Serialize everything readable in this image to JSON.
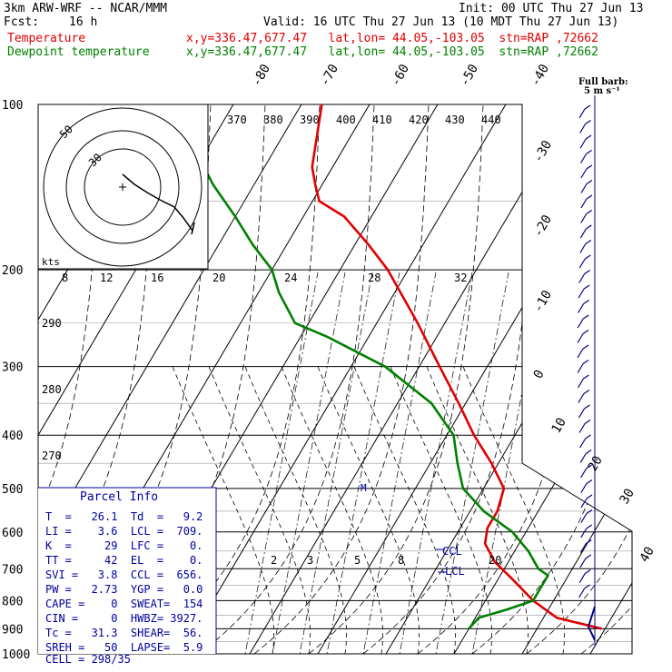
{
  "header": {
    "model": "3km ARW-WRF -- NCAR/MMM",
    "init": "Init: 00 UTC Thu 27 Jun 13",
    "fcst_label": "Fcst:",
    "fcst_value": "16 h",
    "valid": "Valid: 16 UTC Thu 27 Jun 13 (10 MDT Thu 27 Jun 13)",
    "temp_label": "Temperature",
    "temp_loc": "x,y=336.47,677.47   lat,lon= 44.05,-103.05  stn=RAP ,72662",
    "dew_label": "Dewpoint temperature",
    "dew_loc": "x,y=336.47,677.47   lat,lon= 44.05,-103.05  stn=RAP ,72662"
  },
  "colors": {
    "temperature": "#e00000",
    "dewpoint": "#008000",
    "barbs": "#000080",
    "parcel": "#0000a0"
  },
  "chart_data": {
    "type": "line",
    "pressure_ticks": [
      "100",
      "200",
      "300",
      "400",
      "500",
      "600",
      "700",
      "800",
      "900",
      "1000"
    ],
    "temp_ticks": [
      "-80",
      "-70",
      "-60",
      "-50",
      "-40",
      "-30",
      "-20",
      "-10",
      "0",
      "10",
      "20",
      "30",
      "40"
    ],
    "theta_ticks": [
      "370",
      "380",
      "390",
      "400",
      "410",
      "420",
      "430",
      "440"
    ],
    "theta_left_ticks": [
      "290",
      "280",
      "270"
    ],
    "mixing_ticks": [
      "8",
      "12",
      "16",
      "20",
      "24",
      "28",
      "32"
    ],
    "lower_mixing_ticks": [
      "2",
      "3",
      "5",
      "8",
      "20"
    ],
    "hodo_labels": [
      "50",
      "30"
    ],
    "hodo_unit": "kts",
    "barb_scale_label": "Full barb:",
    "barb_scale_value": "5 m s⁻¹",
    "ccl_label": "CCL",
    "lcl_label": "LCL",
    "moist_marker": "M",
    "series": [
      {
        "name": "Temperature",
        "points": [
          [
            900,
            29.5
          ],
          [
            860,
            22
          ],
          [
            800,
            17
          ],
          [
            730,
            12
          ],
          [
            680,
            8
          ],
          [
            630,
            5
          ],
          [
            590,
            4
          ],
          [
            550,
            4
          ],
          [
            500,
            3
          ],
          [
            450,
            -1
          ],
          [
            400,
            -6
          ],
          [
            350,
            -11
          ],
          [
            300,
            -17
          ],
          [
            250,
            -24
          ],
          [
            200,
            -33
          ],
          [
            180,
            -38
          ],
          [
            160,
            -44
          ],
          [
            150,
            -49
          ],
          [
            140,
            -51
          ],
          [
            130,
            -53
          ],
          [
            100,
            -57
          ]
        ]
      },
      {
        "name": "Dewpoint temperature",
        "points": [
          [
            900,
            10
          ],
          [
            860,
            10.5
          ],
          [
            830,
            14
          ],
          [
            800,
            17
          ],
          [
            760,
            17
          ],
          [
            720,
            17
          ],
          [
            700,
            15
          ],
          [
            650,
            12
          ],
          [
            600,
            8
          ],
          [
            550,
            2
          ],
          [
            500,
            -3
          ],
          [
            450,
            -6
          ],
          [
            400,
            -9
          ],
          [
            350,
            -15
          ],
          [
            300,
            -25
          ],
          [
            265,
            -36
          ],
          [
            250,
            -42
          ],
          [
            220,
            -47
          ],
          [
            200,
            -50
          ],
          [
            180,
            -55
          ],
          [
            160,
            -60
          ],
          [
            140,
            -66
          ],
          [
            120,
            -72
          ],
          [
            100,
            -78
          ]
        ]
      }
    ]
  },
  "parcel_info": {
    "title": "Parcel Info",
    "rows": [
      "T  =   26.1  Td  =   9.2",
      "LI =    3.6  LCL =  709.",
      "K  =     29  LFC =    0.",
      "TT =     42  EL  =    0.",
      "SVI =   3.8  CCL =  656.",
      "PW =   2.73  YGP =   0.0",
      "CAPE =    0  SWEAT=  154",
      "CIN =     0  HWBZ= 3927.",
      "Tc =   31.3  SHEAR=  56.",
      "SREH =   50  LAPSE=  5.9",
      "CELL = 298/35"
    ]
  }
}
